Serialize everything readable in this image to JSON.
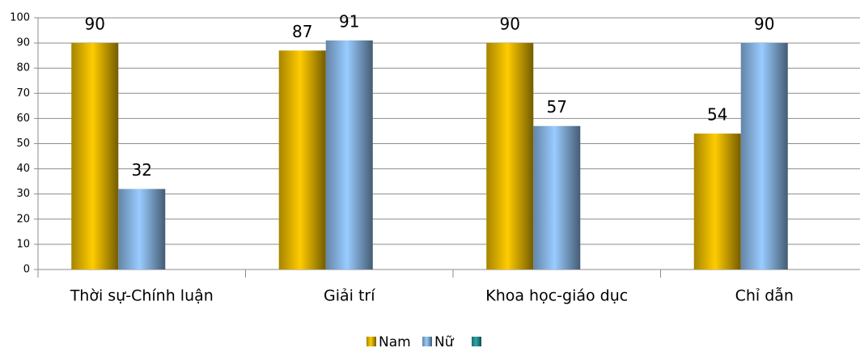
{
  "chart_data": {
    "type": "bar",
    "categories": [
      "Thời sự-Chính luận",
      "Giải trí",
      "Khoa học-giáo dục",
      "Chỉ dẫn"
    ],
    "series": [
      {
        "name": "Nam",
        "color": "#ffcc00",
        "values": [
          90,
          87,
          90,
          54
        ]
      },
      {
        "name": "Nữ",
        "color": "#99ccff",
        "values": [
          32,
          91,
          57,
          90
        ]
      }
    ],
    "ylim": [
      0,
      100
    ],
    "yticks": [
      0,
      10,
      20,
      30,
      40,
      50,
      60,
      70,
      80,
      90,
      100
    ],
    "grid": true,
    "legend": "bottom"
  }
}
